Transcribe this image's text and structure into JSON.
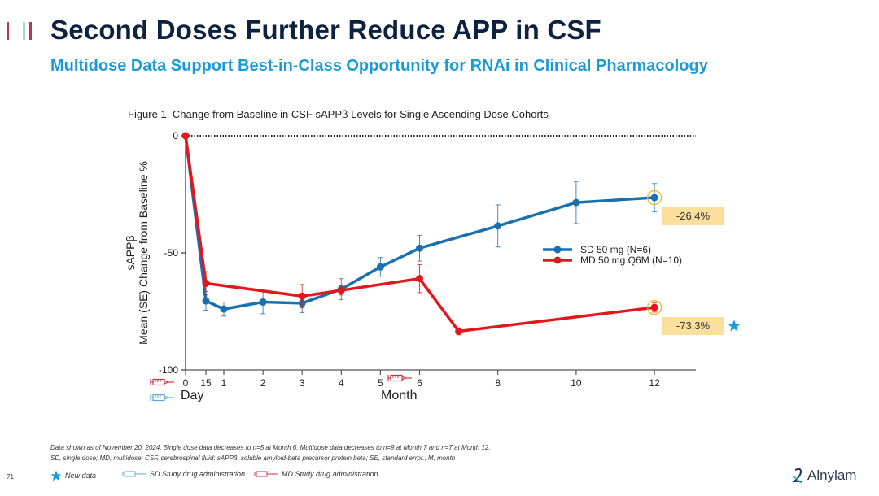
{
  "header": {
    "title": "Second Doses Further Reduce APP in CSF",
    "subtitle": "Multidose Data Support Best-in-Class Opportunity for RNAi in Clinical Pharmacology",
    "accent_bars": [
      "#b5345a",
      "#a9d4e0",
      "#b5345a"
    ]
  },
  "figure_title": "Figure 1. Change from Baseline in CSF sAPPβ Levels for Single Ascending Dose Cohorts",
  "chart_data": {
    "type": "line",
    "title": "Figure 1. Change from Baseline in CSF sAPPβ Levels for Single Ascending Dose Cohorts",
    "ylabel_line1": "sAPPβ",
    "ylabel_line2": "Mean (SE) Change from Baseline %",
    "xlabel_day": "Day",
    "xlabel_month": "Month",
    "ylim": [
      -100,
      0
    ],
    "yticks": [
      0,
      -50,
      -100
    ],
    "x_ticks": [
      {
        "label": "0",
        "pos": 0
      },
      {
        "label": "15",
        "pos": 0.5
      },
      {
        "label": "1",
        "pos": 1
      },
      {
        "label": "2",
        "pos": 2
      },
      {
        "label": "3",
        "pos": 3
      },
      {
        "label": "4",
        "pos": 4
      },
      {
        "label": "5",
        "pos": 5
      },
      {
        "label": "6",
        "pos": 6
      },
      {
        "label": "8",
        "pos": 8
      },
      {
        "label": "10",
        "pos": 10
      },
      {
        "label": "12",
        "pos": 12
      }
    ],
    "xlim": [
      0,
      13
    ],
    "baseline": 0,
    "series": [
      {
        "name": "SD 50 mg (N=6)",
        "color": "#1a6faf",
        "points": [
          {
            "x": 0,
            "y": 0,
            "se": 0
          },
          {
            "x": 0.5,
            "y": -70.5,
            "se": 4
          },
          {
            "x": 1,
            "y": -74,
            "se": 3
          },
          {
            "x": 2,
            "y": -71,
            "se": 5
          },
          {
            "x": 3,
            "y": -71.5,
            "se": 4
          },
          {
            "x": 4,
            "y": -65.5,
            "se": 4.5
          },
          {
            "x": 5,
            "y": -56,
            "se": 4
          },
          {
            "x": 6,
            "y": -48,
            "se": 5.5
          },
          {
            "x": 8,
            "y": -38.5,
            "se": 9
          },
          {
            "x": 10,
            "y": -28.5,
            "se": 9
          },
          {
            "x": 12,
            "y": -26.4,
            "se": 6
          }
        ]
      },
      {
        "name": "MD 50 mg Q6M (N=10)",
        "color": "#e3161b",
        "points": [
          {
            "x": 0,
            "y": 0,
            "se": 0
          },
          {
            "x": 0.5,
            "y": -63,
            "se": 5
          },
          {
            "x": 3,
            "y": -68.5,
            "se": 5
          },
          {
            "x": 4,
            "y": -66,
            "se": 2
          },
          {
            "x": 6,
            "y": -61,
            "se": 6
          },
          {
            "x": 7,
            "y": -83.5,
            "se": 1.5
          },
          {
            "x": 12,
            "y": -73.3,
            "se": 2
          }
        ]
      }
    ],
    "annotations": [
      {
        "series": 0,
        "x": 12,
        "text": "-26.4%"
      },
      {
        "series": 1,
        "x": 12,
        "text": "-73.3%",
        "new_data": true
      }
    ],
    "dosing_markers": [
      {
        "series": "MD",
        "x": 0
      },
      {
        "series": "SD",
        "x": 0
      },
      {
        "series": "MD",
        "x": 6
      }
    ],
    "legend_position": "right"
  },
  "footnotes": {
    "line1": "Data shown as of November 20, 2024. Single dose data decreases to n=5 at Month 6. Multidose data decreases to n=9 at Month 7 and n=7 at Month 12.",
    "line2": "SD, single dose; MD, multidose; CSF, cerebrospinal fluid; sAPPβ, soluble amyloid-beta precursor protein beta; SE, standard error.; M, month",
    "legend_new": "New data",
    "legend_sd": "SD Study drug administration",
    "legend_md": "MD Study drug administration"
  },
  "page_number": "71",
  "logo_text": "Alnylam",
  "colors": {
    "sd": "#1a6faf",
    "md": "#e3161b",
    "callout_bg": "#fbdf9a",
    "highlight_ring": "#f0b429",
    "star": "#1a9bd7",
    "syringe_sd": "#5aa8d6",
    "syringe_md": "#c8353f"
  }
}
